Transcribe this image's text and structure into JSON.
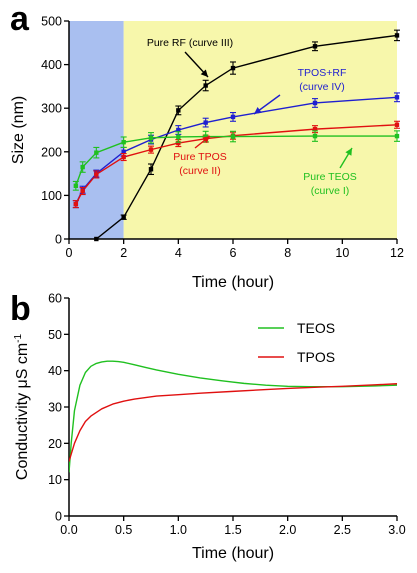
{
  "chart_data": [
    {
      "panel": "a",
      "type": "line",
      "xlabel": "Time (hour)",
      "ylabel": "Size (nm)",
      "xlim": [
        0,
        12
      ],
      "ylim": [
        0,
        500
      ],
      "xticks": [
        0,
        2,
        4,
        6,
        8,
        10,
        12
      ],
      "yticks": [
        0,
        100,
        200,
        300,
        400,
        500
      ],
      "shaded_regions": [
        {
          "x": [
            0,
            2
          ],
          "color": "#a9bff0"
        },
        {
          "x": [
            2,
            12
          ],
          "color": "#f7f7ab"
        }
      ],
      "series": [
        {
          "name": "Pure RF (curve III)",
          "color": "#000000",
          "x": [
            1,
            2,
            3,
            4,
            5,
            6,
            9,
            12
          ],
          "y": [
            0,
            50,
            160,
            295,
            352,
            392,
            442,
            467
          ],
          "err": [
            0,
            5,
            12,
            10,
            12,
            14,
            10,
            12
          ]
        },
        {
          "name": "TPOS+RF (curve IV)",
          "color": "#1f1fd0",
          "x": [
            0.25,
            0.5,
            1,
            2,
            3,
            4,
            5,
            6,
            9,
            12
          ],
          "y": [
            80,
            113,
            150,
            200,
            228,
            250,
            267,
            280,
            312,
            325
          ],
          "err": [
            8,
            8,
            8,
            10,
            10,
            10,
            10,
            10,
            10,
            10
          ]
        },
        {
          "name": "Pure TPOS (curve II)",
          "color": "#e01010",
          "x": [
            0.25,
            0.5,
            1,
            2,
            3,
            4,
            5,
            6,
            9,
            12
          ],
          "y": [
            80,
            110,
            148,
            188,
            205,
            220,
            230,
            237,
            252,
            262
          ],
          "err": [
            8,
            8,
            8,
            8,
            8,
            8,
            8,
            8,
            8,
            8
          ]
        },
        {
          "name": "Pure TEOS (curve I)",
          "color": "#20c020",
          "x": [
            0.25,
            0.5,
            1,
            2,
            3,
            4,
            5,
            6,
            9,
            12
          ],
          "y": [
            122,
            165,
            198,
            222,
            232,
            234,
            235,
            235,
            236,
            236
          ],
          "err": [
            10,
            12,
            12,
            12,
            12,
            12,
            12,
            12,
            12,
            12
          ]
        }
      ]
    },
    {
      "panel": "b",
      "type": "line",
      "xlabel": "Time (hour)",
      "ylabel": "Conductivity μS cm",
      "ylabel_superscript": "-1",
      "xlim": [
        0,
        3
      ],
      "ylim": [
        0,
        60
      ],
      "xticks": [
        0.0,
        0.5,
        1.0,
        1.5,
        2.0,
        2.5,
        3.0
      ],
      "yticks": [
        0,
        10,
        20,
        30,
        40,
        50,
        60
      ],
      "legend": "top-right",
      "series": [
        {
          "name": "TEOS",
          "color": "#20c020",
          "x": [
            0,
            0.02,
            0.05,
            0.1,
            0.15,
            0.2,
            0.25,
            0.3,
            0.35,
            0.4,
            0.45,
            0.5,
            0.6,
            0.7,
            0.8,
            1.0,
            1.2,
            1.4,
            1.6,
            1.8,
            2.0,
            2.2,
            2.5,
            2.8,
            3.0
          ],
          "y": [
            12,
            20,
            29,
            36,
            39.5,
            41.2,
            42.0,
            42.4,
            42.6,
            42.6,
            42.5,
            42.3,
            41.6,
            40.9,
            40.2,
            39.0,
            38.0,
            37.2,
            36.5,
            36.0,
            35.7,
            35.6,
            35.6,
            35.8,
            36.0
          ]
        },
        {
          "name": "TPOS",
          "color": "#e01010",
          "x": [
            0,
            0.02,
            0.05,
            0.1,
            0.15,
            0.2,
            0.25,
            0.3,
            0.4,
            0.5,
            0.6,
            0.7,
            0.8,
            1.0,
            1.2,
            1.5,
            1.8,
            2.0,
            2.3,
            2.5,
            2.8,
            3.0
          ],
          "y": [
            15,
            17,
            20,
            23.5,
            26,
            27.5,
            28.5,
            29.5,
            30.8,
            31.6,
            32.2,
            32.6,
            33.0,
            33.4,
            33.8,
            34.3,
            34.8,
            35.1,
            35.5,
            35.7,
            36.1,
            36.4
          ]
        }
      ]
    }
  ],
  "panel_a": {
    "letter": "a",
    "annotations": [
      {
        "line1": "Pure RF (curve III)",
        "line2": "",
        "color": "#000000"
      },
      {
        "line1": "TPOS+RF",
        "line2": "(curve IV)",
        "color": "#1f1fd0"
      },
      {
        "line1": "Pure TPOS",
        "line2": "(curve II)",
        "color": "#e01010"
      },
      {
        "line1": "Pure TEOS",
        "line2": "(curve I)",
        "color": "#20c020"
      }
    ]
  },
  "panel_b": {
    "letter": "b"
  }
}
